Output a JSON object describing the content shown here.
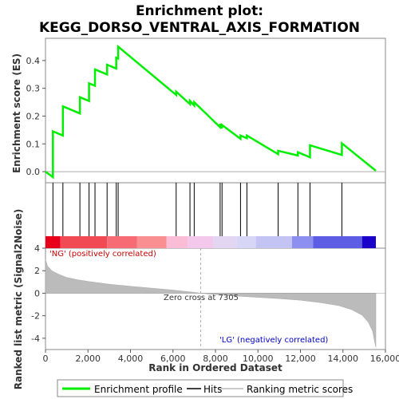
{
  "chart_data": {
    "type": "line",
    "title_line1": "Enrichment plot:",
    "title_line2": "KEGG_DORSO_VENTRAL_AXIS_FORMATION",
    "ylabel_top": "Enrichment score (ES)",
    "ylabel_bottom": "Ranked list metric (Signal2Noise)",
    "xlabel": "Rank in Ordered Dataset",
    "xlim": [
      0,
      16000
    ],
    "ylim_top": [
      -0.04,
      0.48
    ],
    "ylim_bottom": [
      -5,
      4
    ],
    "x_ticks": [
      0,
      2000,
      4000,
      6000,
      8000,
      10000,
      12000,
      14000,
      16000
    ],
    "x_tick_labels": [
      "0",
      "2,000",
      "4,000",
      "6,000",
      "8,000",
      "10,000",
      "12,000",
      "14,000",
      "16,000"
    ],
    "y_ticks_top": [
      0.0,
      0.1,
      0.2,
      0.3,
      0.4
    ],
    "y_tick_labels_top": [
      "0.0",
      "0.1",
      "0.2",
      "0.3",
      "0.4"
    ],
    "y_ticks_bottom": [
      4,
      2,
      0,
      -2,
      -4
    ],
    "y_tick_labels_bottom": [
      "4",
      "2",
      "0",
      "-2",
      "-4"
    ],
    "n_genes": 15550,
    "hits": [
      350,
      820,
      1620,
      2050,
      2330,
      2900,
      3330,
      3420,
      6150,
      6800,
      7000,
      8220,
      8310,
      9180,
      9480,
      10950,
      11880,
      12450,
      13950
    ],
    "es_peaks": [
      0.145,
      0.235,
      0.268,
      0.318,
      0.368,
      0.385,
      0.41,
      0.45,
      0.288,
      0.255,
      0.25,
      0.172,
      0.168,
      0.13,
      0.13,
      0.075,
      0.07,
      0.095,
      0.102
    ],
    "es_start": 0.0,
    "es_first_dip": -0.02,
    "es_end": 0.003,
    "metric_profile": [
      [
        0,
        3.0
      ],
      [
        100,
        2.4
      ],
      [
        300,
        2.0
      ],
      [
        600,
        1.7
      ],
      [
        1000,
        1.4
      ],
      [
        1500,
        1.2
      ],
      [
        2000,
        1.05
      ],
      [
        3000,
        0.8
      ],
      [
        4000,
        0.62
      ],
      [
        5000,
        0.45
      ],
      [
        6000,
        0.28
      ],
      [
        7000,
        0.08
      ],
      [
        7305,
        0.0
      ],
      [
        8000,
        -0.12
      ],
      [
        9000,
        -0.25
      ],
      [
        10000,
        -0.37
      ],
      [
        11000,
        -0.48
      ],
      [
        12000,
        -0.62
      ],
      [
        13000,
        -0.85
      ],
      [
        13800,
        -1.1
      ],
      [
        14400,
        -1.45
      ],
      [
        14900,
        -1.95
      ],
      [
        15200,
        -2.6
      ],
      [
        15400,
        -3.4
      ],
      [
        15500,
        -4.4
      ],
      [
        15550,
        -4.8
      ]
    ],
    "zero_cross_label": "Zero cross at 7305",
    "zero_cross_rank": 7305,
    "pos_label": "'NG' (positively correlated)",
    "neg_label": "'LG' (negatively correlated)",
    "legend": [
      "Enrichment profile",
      "Hits",
      "Ranking metric scores"
    ],
    "colors": {
      "es_line": "#00ee00",
      "hit_line": "#000000",
      "metric_fill": "#bbbbbb",
      "pos_text": "#cc0000",
      "neg_text": "#0000cc"
    },
    "heat_blocks": [
      {
        "from": 0,
        "to": 700,
        "color": "#e8001a"
      },
      {
        "from": 700,
        "to": 2900,
        "color": "#f24a55"
      },
      {
        "from": 2900,
        "to": 4300,
        "color": "#f76b74"
      },
      {
        "from": 4300,
        "to": 5700,
        "color": "#fa8f92"
      },
      {
        "from": 5700,
        "to": 6700,
        "color": "#fbbdd6"
      },
      {
        "from": 6700,
        "to": 7900,
        "color": "#f4c8ec"
      },
      {
        "from": 7900,
        "to": 9000,
        "color": "#e2d6f2"
      },
      {
        "from": 9000,
        "to": 9900,
        "color": "#d8d6f6"
      },
      {
        "from": 9900,
        "to": 11600,
        "color": "#c4c4f4"
      },
      {
        "from": 11600,
        "to": 12600,
        "color": "#8c8ef0"
      },
      {
        "from": 12600,
        "to": 14900,
        "color": "#5c5ce4"
      },
      {
        "from": 14900,
        "to": 15550,
        "color": "#1a00c8"
      }
    ]
  }
}
